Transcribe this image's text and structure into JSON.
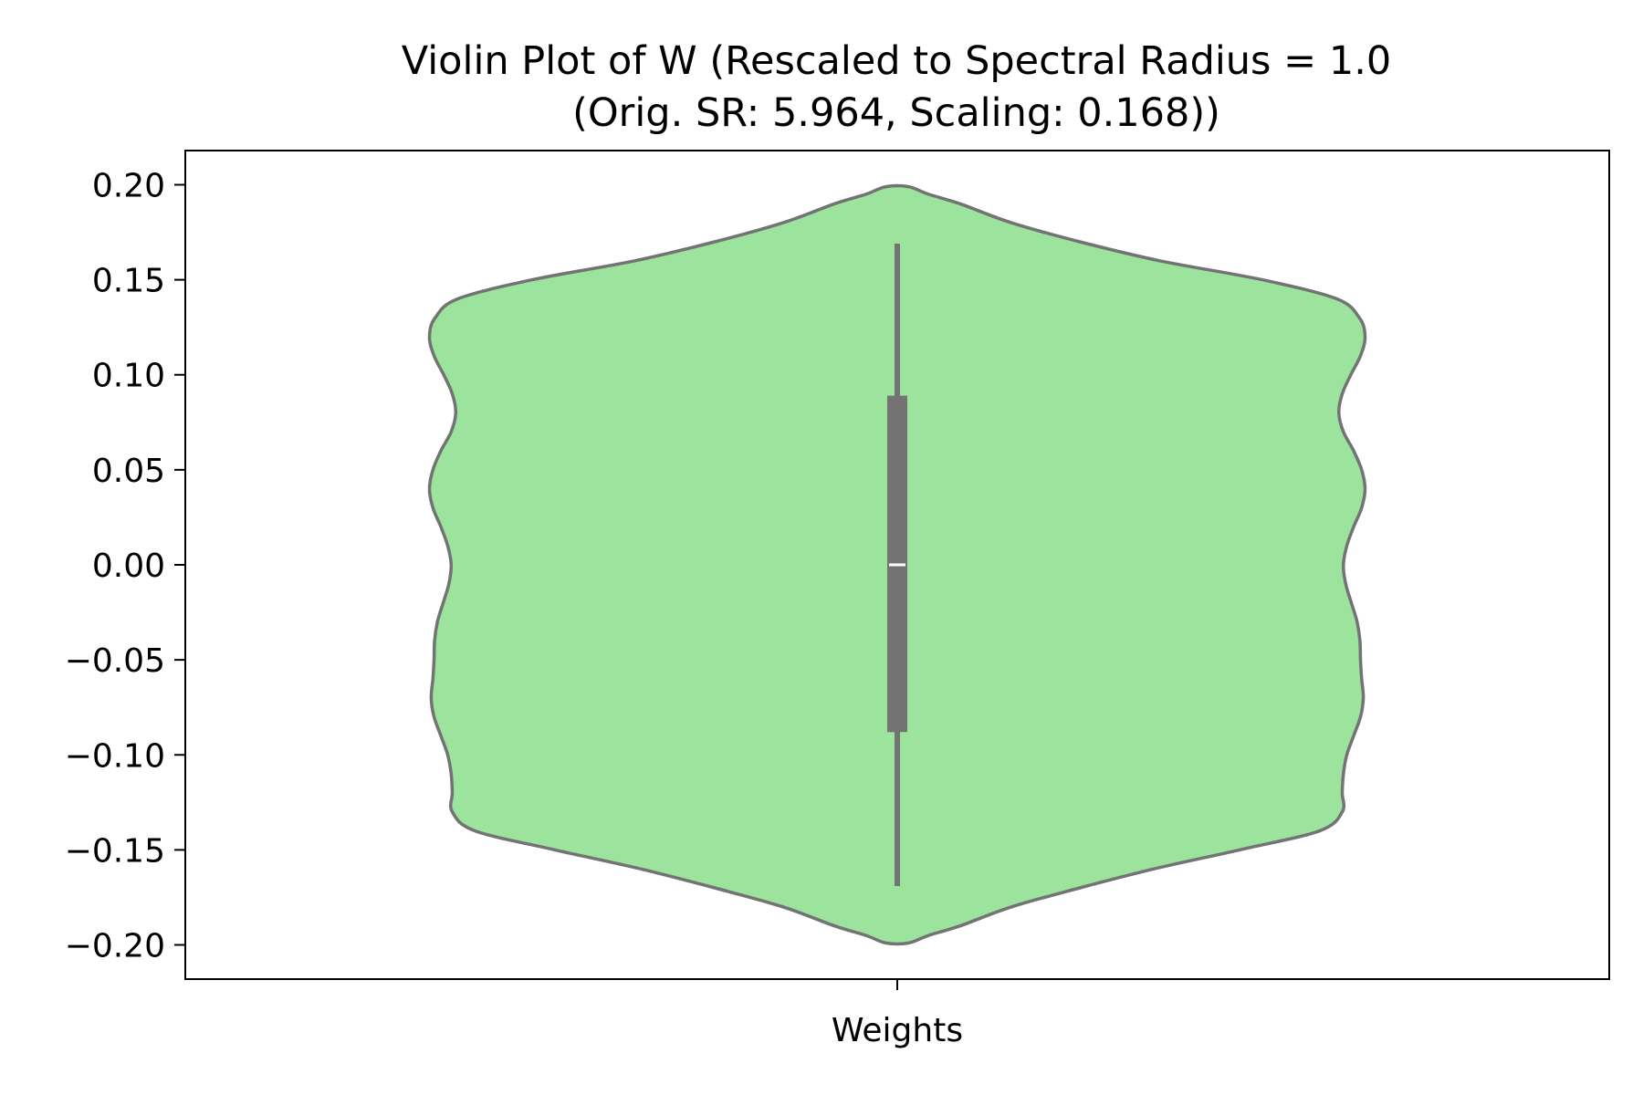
{
  "chart_data": {
    "type": "violin",
    "title": "Violin Plot of W (Rescaled to Spectral Radius = 1.0",
    "subtitle": "(Orig. SR: 5.964, Scaling: 0.168))",
    "xlabel": "",
    "ylabel": "",
    "categories": [
      "Weights"
    ],
    "ylim": [
      -0.218,
      0.218
    ],
    "yticks": [
      0.2,
      0.15,
      0.1,
      0.05,
      0.0,
      -0.05,
      -0.1,
      -0.15,
      -0.2
    ],
    "ytick_labels": [
      "0.20",
      "0.15",
      "0.10",
      "0.05",
      "0.00",
      "−0.05",
      "−0.10",
      "−0.15",
      "−0.20"
    ],
    "grid": false,
    "legend": "none",
    "fill_color": "#9ce39e",
    "edge_color": "#737373",
    "box": {
      "median": 0.0,
      "q1": -0.088,
      "q3": 0.089,
      "whisker_low": -0.169,
      "whisker_high": 0.169
    },
    "density_profile": [
      [
        0.199,
        0.02
      ],
      [
        0.195,
        0.055
      ],
      [
        0.19,
        0.11
      ],
      [
        0.18,
        0.2
      ],
      [
        0.17,
        0.32
      ],
      [
        0.16,
        0.46
      ],
      [
        0.15,
        0.64
      ],
      [
        0.14,
        0.77
      ],
      [
        0.13,
        0.81
      ],
      [
        0.12,
        0.82
      ],
      [
        0.11,
        0.812
      ],
      [
        0.1,
        0.795
      ],
      [
        0.09,
        0.78
      ],
      [
        0.08,
        0.774
      ],
      [
        0.07,
        0.782
      ],
      [
        0.06,
        0.8
      ],
      [
        0.05,
        0.814
      ],
      [
        0.04,
        0.82
      ],
      [
        0.03,
        0.814
      ],
      [
        0.02,
        0.8
      ],
      [
        0.01,
        0.788
      ],
      [
        0.0,
        0.782
      ],
      [
        -0.01,
        0.786
      ],
      [
        -0.02,
        0.796
      ],
      [
        -0.03,
        0.806
      ],
      [
        -0.04,
        0.811
      ],
      [
        -0.05,
        0.812
      ],
      [
        -0.06,
        0.814
      ],
      [
        -0.07,
        0.817
      ],
      [
        -0.08,
        0.812
      ],
      [
        -0.09,
        0.8
      ],
      [
        -0.1,
        0.788
      ],
      [
        -0.11,
        0.782
      ],
      [
        -0.12,
        0.78
      ],
      [
        -0.13,
        0.78
      ],
      [
        -0.14,
        0.74
      ],
      [
        -0.15,
        0.6
      ],
      [
        -0.16,
        0.45
      ],
      [
        -0.17,
        0.32
      ],
      [
        -0.18,
        0.2
      ],
      [
        -0.19,
        0.11
      ],
      [
        -0.195,
        0.055
      ],
      [
        -0.199,
        0.02
      ]
    ]
  }
}
